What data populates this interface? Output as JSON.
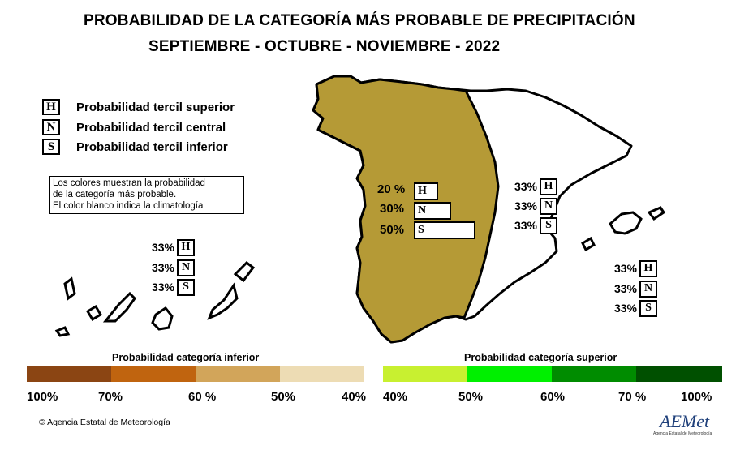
{
  "title_line1": "PROBABILIDAD DE LA  CATEGORÍA MÁS PROBABLE DE PRECIPITACIÓN",
  "title_line2": "SEPTIEMBRE - OCTUBRE - NOVIEMBRE - 2022",
  "legend": [
    {
      "code": "H",
      "text": "Probabilidad  tercil superior"
    },
    {
      "code": "N",
      "text": "Probabilidad  tercil central"
    },
    {
      "code": "S",
      "text": "Probabilidad  tercil inferior"
    }
  ],
  "note": [
    "Los colores muestran la probabilidad",
    "de la categoría más probable.",
    "El color blanco indica la climatología"
  ],
  "regions": {
    "west": {
      "fill_color": "#b59a36",
      "values": [
        {
          "code": "H",
          "percent": "20 %",
          "value": 20
        },
        {
          "code": "N",
          "percent": "30%",
          "value": 30
        },
        {
          "code": "S",
          "percent": "50%",
          "value": 50
        }
      ]
    },
    "east": {
      "fill_color": "#ffffff",
      "values": [
        {
          "code": "H",
          "percent": "33%"
        },
        {
          "code": "N",
          "percent": "33%"
        },
        {
          "code": "S",
          "percent": "33%"
        }
      ]
    },
    "canarias": {
      "values": [
        {
          "code": "H",
          "percent": "33%"
        },
        {
          "code": "N",
          "percent": "33%"
        },
        {
          "code": "S",
          "percent": "33%"
        }
      ]
    },
    "baleares": {
      "values": [
        {
          "code": "H",
          "percent": "33%"
        },
        {
          "code": "N",
          "percent": "33%"
        },
        {
          "code": "S",
          "percent": "33%"
        }
      ]
    }
  },
  "scale": {
    "lower_title": "Probabilidad categoría inferior",
    "upper_title": "Probabilidad categoría superior",
    "lower_colors": [
      "#8b4513",
      "#c0640f",
      "#d2a55a",
      "#eddcb4"
    ],
    "upper_colors": [
      "#c8f030",
      "#00f000",
      "#008c00",
      "#005000"
    ],
    "lower_ticks": [
      "100%",
      "70%",
      "60 %",
      "50%",
      "40%"
    ],
    "upper_ticks": [
      "40%",
      "50%",
      "60%",
      "70 %",
      "100%"
    ]
  },
  "copyright": "© Agencia Estatal de Meteorología",
  "logo": {
    "text": "AEMet",
    "subtitle": "Agencia Estatal de Meteorología"
  }
}
